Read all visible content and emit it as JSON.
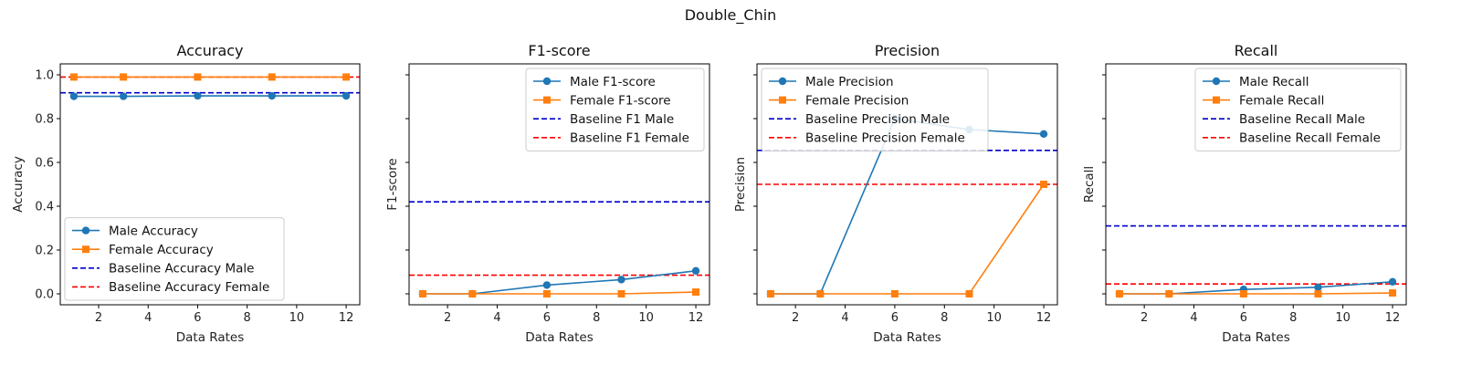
{
  "figure": {
    "suptitle": "Double_Chin"
  },
  "colors": {
    "male": "#1f77b4",
    "female": "#ff7f0e",
    "baseline_male": "#0000cc",
    "baseline_female": "#ff0000"
  },
  "chart_data": [
    {
      "type": "line",
      "title": "Accuracy",
      "xlabel": "Data Rates",
      "ylabel": "Accuracy",
      "x": [
        1,
        3,
        6,
        9,
        12
      ],
      "xlim": [
        0.45,
        12.55
      ],
      "ylim": [
        -0.05,
        1.05
      ],
      "xticks": [
        2,
        4,
        6,
        8,
        10,
        12
      ],
      "yticks": [
        0.0,
        0.2,
        0.4,
        0.6,
        0.8,
        1.0
      ],
      "ytick_labels": [
        "0.0",
        "0.2",
        "0.4",
        "0.6",
        "0.8",
        "1.0"
      ],
      "series": [
        {
          "name": "Male Accuracy",
          "values": [
            0.902,
            0.902,
            0.904,
            0.904,
            0.904
          ],
          "marker": "circle"
        },
        {
          "name": "Female Accuracy",
          "values": [
            0.99,
            0.99,
            0.99,
            0.99,
            0.99
          ],
          "marker": "square"
        }
      ],
      "baselines": [
        {
          "name": "Baseline Accuracy Male",
          "value": 0.918
        },
        {
          "name": "Baseline Accuracy Female",
          "value": 0.99
        }
      ],
      "legend": "lower-left"
    },
    {
      "type": "line",
      "title": "F1-score",
      "xlabel": "Data Rates",
      "ylabel": "F1-score",
      "x": [
        1,
        3,
        6,
        9,
        12
      ],
      "xlim": [
        0.45,
        12.55
      ],
      "ylim": [
        -0.05,
        1.05
      ],
      "xticks": [
        2,
        4,
        6,
        8,
        10,
        12
      ],
      "yticks": [
        0.0,
        0.2,
        0.4,
        0.6,
        0.8,
        1.0
      ],
      "ytick_labels": [
        "",
        "",
        "",
        "",
        "",
        ""
      ],
      "series": [
        {
          "name": "Male F1-score",
          "values": [
            0.0,
            0.0,
            0.04,
            0.065,
            0.105
          ],
          "marker": "circle"
        },
        {
          "name": "Female F1-score",
          "values": [
            0.0,
            0.0,
            0.0,
            0.0,
            0.008
          ],
          "marker": "square"
        }
      ],
      "baselines": [
        {
          "name": "Baseline F1 Male",
          "value": 0.42
        },
        {
          "name": "Baseline F1 Female",
          "value": 0.085
        }
      ],
      "legend": "upper-right"
    },
    {
      "type": "line",
      "title": "Precision",
      "xlabel": "Data Rates",
      "ylabel": "Precision",
      "x": [
        1,
        3,
        6,
        9,
        12
      ],
      "xlim": [
        0.45,
        12.55
      ],
      "ylim": [
        -0.05,
        1.05
      ],
      "xticks": [
        2,
        4,
        6,
        8,
        10,
        12
      ],
      "yticks": [
        0.0,
        0.2,
        0.4,
        0.6,
        0.8,
        1.0
      ],
      "ytick_labels": [
        "",
        "",
        "",
        "",
        "",
        ""
      ],
      "series": [
        {
          "name": "Male Precision",
          "values": [
            0.0,
            0.0,
            0.8,
            0.75,
            0.73
          ],
          "marker": "circle"
        },
        {
          "name": "Female Precision",
          "values": [
            0.0,
            0.0,
            0.0,
            0.0,
            0.5
          ],
          "marker": "square"
        }
      ],
      "baselines": [
        {
          "name": "Baseline Precision Male",
          "value": 0.655
        },
        {
          "name": "Baseline Precision Female",
          "value": 0.5
        }
      ],
      "legend": "upper-left"
    },
    {
      "type": "line",
      "title": "Recall",
      "xlabel": "Data Rates",
      "ylabel": "Recall",
      "x": [
        1,
        3,
        6,
        9,
        12
      ],
      "xlim": [
        0.45,
        12.55
      ],
      "ylim": [
        -0.05,
        1.05
      ],
      "xticks": [
        2,
        4,
        6,
        8,
        10,
        12
      ],
      "yticks": [
        0.0,
        0.2,
        0.4,
        0.6,
        0.8,
        1.0
      ],
      "ytick_labels": [
        "",
        "",
        "",
        "",
        "",
        ""
      ],
      "series": [
        {
          "name": "Male Recall",
          "values": [
            0.0,
            0.0,
            0.02,
            0.03,
            0.055
          ],
          "marker": "circle"
        },
        {
          "name": "Female Recall",
          "values": [
            0.0,
            0.0,
            0.0,
            0.0,
            0.004
          ],
          "marker": "square"
        }
      ],
      "baselines": [
        {
          "name": "Baseline Recall Male",
          "value": 0.31
        },
        {
          "name": "Baseline Recall Female",
          "value": 0.045
        }
      ],
      "legend": "upper-right"
    }
  ]
}
